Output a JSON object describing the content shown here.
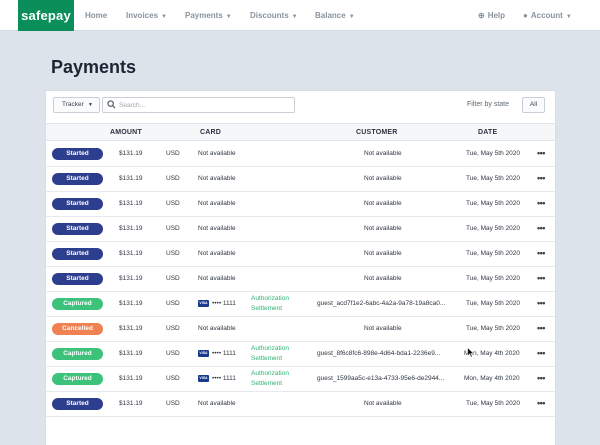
{
  "nav": {
    "logo": "safepay",
    "items": [
      {
        "label": "Home",
        "dropdown": false
      },
      {
        "label": "Invoices",
        "dropdown": true
      },
      {
        "label": "Payments",
        "dropdown": true
      },
      {
        "label": "Discounts",
        "dropdown": true
      },
      {
        "label": "Balance",
        "dropdown": true
      }
    ],
    "help": "Help",
    "account": "Account"
  },
  "page_title": "Payments",
  "toolbar": {
    "tracker_label": "Tracker",
    "search_placeholder": "Search...",
    "filter_label": "Filter by state",
    "filter_value": "All"
  },
  "columns": {
    "amount": "AMOUNT",
    "card": "CARD",
    "customer": "CUSTOMER",
    "date": "DATE"
  },
  "status_colors": {
    "Started": "#2d3e8f",
    "Captured": "#3cc27a",
    "Cancelled": "#f08152"
  },
  "rows": [
    {
      "status": "Started",
      "amount": "$131.19",
      "currency": "USD",
      "card": "Not available",
      "links": [],
      "customer": "Not available",
      "date": "Tue, May 5th 2020"
    },
    {
      "status": "Started",
      "amount": "$131.19",
      "currency": "USD",
      "card": "Not available",
      "links": [],
      "customer": "Not available",
      "date": "Tue, May 5th 2020"
    },
    {
      "status": "Started",
      "amount": "$131.19",
      "currency": "USD",
      "card": "Not available",
      "links": [],
      "customer": "Not available",
      "date": "Tue, May 5th 2020"
    },
    {
      "status": "Started",
      "amount": "$131.19",
      "currency": "USD",
      "card": "Not available",
      "links": [],
      "customer": "Not available",
      "date": "Tue, May 5th 2020"
    },
    {
      "status": "Started",
      "amount": "$131.19",
      "currency": "USD",
      "card": "Not available",
      "links": [],
      "customer": "Not available",
      "date": "Tue, May 5th 2020"
    },
    {
      "status": "Started",
      "amount": "$131.19",
      "currency": "USD",
      "card": "Not available",
      "links": [],
      "customer": "Not available",
      "date": "Tue, May 5th 2020"
    },
    {
      "status": "Captured",
      "amount": "$131.19",
      "currency": "USD",
      "card_brand": "VISA",
      "card": "•••• 1111",
      "links": [
        "Authorization",
        "Settlement"
      ],
      "customer": "guest_acd7f1e2-6abc-4a2a-9a78-19a8ca0...",
      "date": "Tue, May 5th 2020"
    },
    {
      "status": "Cancelled",
      "amount": "$131.19",
      "currency": "USD",
      "card": "Not available",
      "links": [],
      "customer": "Not available",
      "date": "Tue, May 5th 2020"
    },
    {
      "status": "Captured",
      "amount": "$131.19",
      "currency": "USD",
      "card_brand": "VISA",
      "card": "•••• 1111",
      "links": [
        "Authorization",
        "Settlement"
      ],
      "customer": "guest_8f6c8fc6-898e-4d64-bda1-2236e9...",
      "date": "Mon, May 4th 2020"
    },
    {
      "status": "Captured",
      "amount": "$131.19",
      "currency": "USD",
      "card_brand": "VISA",
      "card": "•••• 1111",
      "links": [
        "Authorization",
        "Settlement"
      ],
      "customer": "guest_1599aa5c-e13a-4733-95e6-de2944...",
      "date": "Mon, May 4th 2020"
    },
    {
      "status": "Started",
      "amount": "$131.19",
      "currency": "USD",
      "card": "Not available",
      "links": [],
      "customer": "Not available",
      "date": "Tue, May 5th 2020"
    }
  ],
  "row_menu": "•••"
}
